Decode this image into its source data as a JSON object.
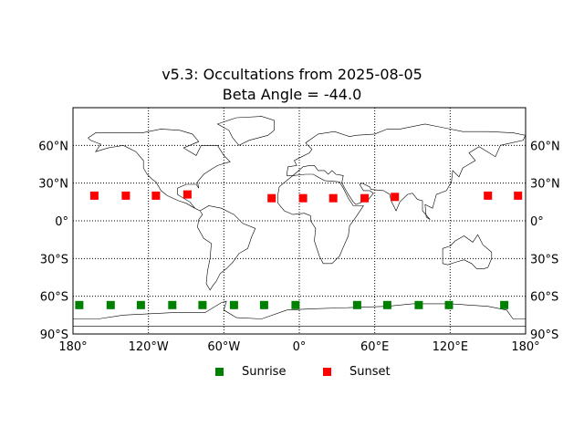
{
  "title_line1": "v5.3: Occultations from 2025-08-05",
  "title_line2": "Beta Angle = -44.0",
  "legend": [
    {
      "label": "Sunrise",
      "color": "#008000"
    },
    {
      "label": "Sunset",
      "color": "#ff0000"
    }
  ],
  "chart_data": {
    "type": "scatter",
    "projection": "equirectangular",
    "xlim": [
      -180,
      180
    ],
    "ylim": [
      -90,
      90
    ],
    "grid": true,
    "coastlines": true,
    "legend_position": "bottom-center",
    "x_ticks": [
      {
        "value": -180,
        "label": "180°"
      },
      {
        "value": -120,
        "label": "120°W"
      },
      {
        "value": -60,
        "label": "60°W"
      },
      {
        "value": 0,
        "label": "0°"
      },
      {
        "value": 60,
        "label": "60°E"
      },
      {
        "value": 120,
        "label": "120°E"
      },
      {
        "value": 180,
        "label": "180°"
      }
    ],
    "y_ticks": [
      {
        "value": 60,
        "label": "60°N"
      },
      {
        "value": 30,
        "label": "30°N"
      },
      {
        "value": 0,
        "label": "0°"
      },
      {
        "value": -30,
        "label": "30°S"
      },
      {
        "value": -60,
        "label": "60°S"
      },
      {
        "value": -90,
        "label": "90°S"
      }
    ],
    "series": [
      {
        "name": "Sunrise",
        "color": "#008000",
        "marker": "square",
        "points": [
          {
            "lon": -175,
            "lat": -67
          },
          {
            "lon": -150,
            "lat": -67
          },
          {
            "lon": -126,
            "lat": -67
          },
          {
            "lon": -101,
            "lat": -67
          },
          {
            "lon": -77,
            "lat": -67
          },
          {
            "lon": -52,
            "lat": -67
          },
          {
            "lon": -28,
            "lat": -67
          },
          {
            "lon": -3,
            "lat": -67
          },
          {
            "lon": 46,
            "lat": -67
          },
          {
            "lon": 70,
            "lat": -67
          },
          {
            "lon": 95,
            "lat": -67
          },
          {
            "lon": 119,
            "lat": -67
          },
          {
            "lon": 163,
            "lat": -67
          }
        ]
      },
      {
        "name": "Sunset",
        "color": "#ff0000",
        "marker": "square",
        "points": [
          {
            "lon": -163,
            "lat": 20
          },
          {
            "lon": -138,
            "lat": 20
          },
          {
            "lon": -114,
            "lat": 20
          },
          {
            "lon": -89,
            "lat": 21
          },
          {
            "lon": -22,
            "lat": 18
          },
          {
            "lon": 3,
            "lat": 18
          },
          {
            "lon": 27,
            "lat": 18
          },
          {
            "lon": 52,
            "lat": 18
          },
          {
            "lon": 76,
            "lat": 19
          },
          {
            "lon": 150,
            "lat": 20
          },
          {
            "lon": 174,
            "lat": 20
          }
        ]
      }
    ]
  }
}
